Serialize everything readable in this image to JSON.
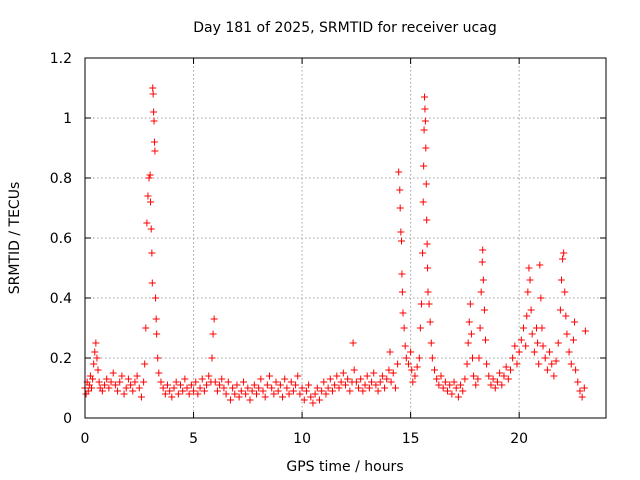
{
  "chart_data": {
    "type": "scatter",
    "title": "Day 181 of 2025, SRMTID for receiver ucag",
    "xlabel": "GPS time / hours",
    "ylabel": "SRMTID / TECUs",
    "xlim": [
      0,
      24
    ],
    "ylim": [
      0,
      1.2
    ],
    "xticks": [
      0,
      5,
      10,
      15,
      20
    ],
    "xtick_labels": [
      "0",
      "5",
      "10",
      "15",
      "20"
    ],
    "yticks": [
      0,
      0.2,
      0.4,
      0.6,
      0.8,
      1.0,
      1.2
    ],
    "ytick_labels": [
      "0",
      "0.2",
      "0.4",
      "0.6",
      "0.8",
      "1",
      "1.2"
    ],
    "grid": true,
    "marker": "+",
    "color": "#ff0000",
    "series": [
      {
        "name": "SRMTID",
        "points": [
          [
            0.0,
            0.1
          ],
          [
            0.05,
            0.08
          ],
          [
            0.1,
            0.12
          ],
          [
            0.15,
            0.09
          ],
          [
            0.2,
            0.11
          ],
          [
            0.25,
            0.14
          ],
          [
            0.3,
            0.1
          ],
          [
            0.35,
            0.13
          ],
          [
            0.4,
            0.18
          ],
          [
            0.45,
            0.22
          ],
          [
            0.5,
            0.25
          ],
          [
            0.55,
            0.2
          ],
          [
            0.6,
            0.16
          ],
          [
            0.65,
            0.12
          ],
          [
            0.7,
            0.1
          ],
          [
            0.8,
            0.09
          ],
          [
            0.9,
            0.11
          ],
          [
            1.0,
            0.13
          ],
          [
            1.1,
            0.1
          ],
          [
            1.2,
            0.12
          ],
          [
            1.3,
            0.15
          ],
          [
            1.4,
            0.11
          ],
          [
            1.5,
            0.09
          ],
          [
            1.6,
            0.12
          ],
          [
            1.7,
            0.14
          ],
          [
            1.8,
            0.08
          ],
          [
            1.9,
            0.1
          ],
          [
            2.0,
            0.13
          ],
          [
            2.1,
            0.11
          ],
          [
            2.2,
            0.09
          ],
          [
            2.3,
            0.12
          ],
          [
            2.4,
            0.14
          ],
          [
            2.5,
            0.1
          ],
          [
            2.6,
            0.07
          ],
          [
            2.7,
            0.12
          ],
          [
            2.75,
            0.18
          ],
          [
            2.8,
            0.3
          ],
          [
            2.85,
            0.65
          ],
          [
            2.9,
            0.74
          ],
          [
            2.95,
            0.8
          ],
          [
            3.0,
            0.81
          ],
          [
            3.02,
            0.72
          ],
          [
            3.05,
            0.63
          ],
          [
            3.08,
            0.55
          ],
          [
            3.1,
            0.45
          ],
          [
            3.12,
            1.1
          ],
          [
            3.14,
            1.08
          ],
          [
            3.16,
            1.02
          ],
          [
            3.18,
            0.99
          ],
          [
            3.2,
            0.92
          ],
          [
            3.22,
            0.89
          ],
          [
            3.25,
            0.4
          ],
          [
            3.28,
            0.33
          ],
          [
            3.3,
            0.28
          ],
          [
            3.35,
            0.2
          ],
          [
            3.4,
            0.15
          ],
          [
            3.5,
            0.12
          ],
          [
            3.6,
            0.1
          ],
          [
            3.7,
            0.08
          ],
          [
            3.8,
            0.11
          ],
          [
            3.9,
            0.09
          ],
          [
            4.0,
            0.07
          ],
          [
            4.1,
            0.1
          ],
          [
            4.2,
            0.12
          ],
          [
            4.3,
            0.08
          ],
          [
            4.4,
            0.11
          ],
          [
            4.5,
            0.09
          ],
          [
            4.6,
            0.13
          ],
          [
            4.7,
            0.1
          ],
          [
            4.8,
            0.08
          ],
          [
            4.9,
            0.11
          ],
          [
            5.0,
            0.09
          ],
          [
            5.1,
            0.12
          ],
          [
            5.2,
            0.08
          ],
          [
            5.3,
            0.1
          ],
          [
            5.4,
            0.13
          ],
          [
            5.5,
            0.09
          ],
          [
            5.6,
            0.11
          ],
          [
            5.7,
            0.14
          ],
          [
            5.8,
            0.12
          ],
          [
            5.85,
            0.2
          ],
          [
            5.9,
            0.28
          ],
          [
            5.95,
            0.33
          ],
          [
            6.0,
            0.12
          ],
          [
            6.1,
            0.09
          ],
          [
            6.2,
            0.11
          ],
          [
            6.3,
            0.13
          ],
          [
            6.4,
            0.1
          ],
          [
            6.5,
            0.08
          ],
          [
            6.6,
            0.12
          ],
          [
            6.7,
            0.06
          ],
          [
            6.8,
            0.1
          ],
          [
            6.9,
            0.08
          ],
          [
            7.0,
            0.11
          ],
          [
            7.1,
            0.07
          ],
          [
            7.2,
            0.09
          ],
          [
            7.3,
            0.12
          ],
          [
            7.4,
            0.08
          ],
          [
            7.5,
            0.1
          ],
          [
            7.6,
            0.06
          ],
          [
            7.7,
            0.09
          ],
          [
            7.8,
            0.11
          ],
          [
            7.9,
            0.08
          ],
          [
            8.0,
            0.1
          ],
          [
            8.1,
            0.13
          ],
          [
            8.2,
            0.09
          ],
          [
            8.3,
            0.07
          ],
          [
            8.4,
            0.11
          ],
          [
            8.5,
            0.14
          ],
          [
            8.6,
            0.1
          ],
          [
            8.7,
            0.08
          ],
          [
            8.8,
            0.12
          ],
          [
            8.9,
            0.09
          ],
          [
            9.0,
            0.11
          ],
          [
            9.1,
            0.07
          ],
          [
            9.2,
            0.13
          ],
          [
            9.3,
            0.1
          ],
          [
            9.4,
            0.08
          ],
          [
            9.5,
            0.12
          ],
          [
            9.6,
            0.09
          ],
          [
            9.7,
            0.11
          ],
          [
            9.8,
            0.14
          ],
          [
            9.9,
            0.08
          ],
          [
            10.0,
            0.1
          ],
          [
            10.1,
            0.06
          ],
          [
            10.2,
            0.09
          ],
          [
            10.3,
            0.11
          ],
          [
            10.4,
            0.07
          ],
          [
            10.5,
            0.05
          ],
          [
            10.6,
            0.08
          ],
          [
            10.7,
            0.1
          ],
          [
            10.8,
            0.06
          ],
          [
            10.9,
            0.09
          ],
          [
            11.0,
            0.12
          ],
          [
            11.1,
            0.08
          ],
          [
            11.2,
            0.1
          ],
          [
            11.3,
            0.13
          ],
          [
            11.4,
            0.09
          ],
          [
            11.5,
            0.11
          ],
          [
            11.6,
            0.14
          ],
          [
            11.7,
            0.1
          ],
          [
            11.8,
            0.12
          ],
          [
            11.9,
            0.15
          ],
          [
            12.0,
            0.11
          ],
          [
            12.1,
            0.13
          ],
          [
            12.2,
            0.09
          ],
          [
            12.3,
            0.12
          ],
          [
            12.35,
            0.25
          ],
          [
            12.4,
            0.16
          ],
          [
            12.5,
            0.12
          ],
          [
            12.6,
            0.1
          ],
          [
            12.7,
            0.13
          ],
          [
            12.8,
            0.09
          ],
          [
            12.9,
            0.11
          ],
          [
            13.0,
            0.14
          ],
          [
            13.1,
            0.1
          ],
          [
            13.2,
            0.12
          ],
          [
            13.3,
            0.15
          ],
          [
            13.4,
            0.11
          ],
          [
            13.5,
            0.09
          ],
          [
            13.6,
            0.12
          ],
          [
            13.7,
            0.14
          ],
          [
            13.8,
            0.1
          ],
          [
            13.9,
            0.13
          ],
          [
            14.0,
            0.16
          ],
          [
            14.05,
            0.22
          ],
          [
            14.1,
            0.12
          ],
          [
            14.2,
            0.15
          ],
          [
            14.3,
            0.1
          ],
          [
            14.4,
            0.18
          ],
          [
            14.45,
            0.82
          ],
          [
            14.5,
            0.76
          ],
          [
            14.52,
            0.7
          ],
          [
            14.55,
            0.62
          ],
          [
            14.58,
            0.59
          ],
          [
            14.6,
            0.48
          ],
          [
            14.62,
            0.42
          ],
          [
            14.65,
            0.35
          ],
          [
            14.7,
            0.3
          ],
          [
            14.75,
            0.24
          ],
          [
            14.8,
            0.2
          ],
          [
            14.9,
            0.18
          ],
          [
            15.0,
            0.22
          ],
          [
            15.05,
            0.16
          ],
          [
            15.1,
            0.12
          ],
          [
            15.2,
            0.14
          ],
          [
            15.3,
            0.17
          ],
          [
            15.4,
            0.2
          ],
          [
            15.45,
            0.3
          ],
          [
            15.5,
            0.38
          ],
          [
            15.55,
            0.55
          ],
          [
            15.58,
            0.72
          ],
          [
            15.6,
            0.84
          ],
          [
            15.62,
            0.96
          ],
          [
            15.64,
            1.07
          ],
          [
            15.66,
            1.03
          ],
          [
            15.68,
            0.99
          ],
          [
            15.7,
            0.9
          ],
          [
            15.72,
            0.78
          ],
          [
            15.74,
            0.66
          ],
          [
            15.76,
            0.58
          ],
          [
            15.78,
            0.5
          ],
          [
            15.8,
            0.42
          ],
          [
            15.85,
            0.38
          ],
          [
            15.9,
            0.32
          ],
          [
            15.95,
            0.25
          ],
          [
            16.0,
            0.2
          ],
          [
            16.1,
            0.16
          ],
          [
            16.2,
            0.13
          ],
          [
            16.3,
            0.11
          ],
          [
            16.4,
            0.14
          ],
          [
            16.5,
            0.1
          ],
          [
            16.6,
            0.12
          ],
          [
            16.7,
            0.09
          ],
          [
            16.8,
            0.11
          ],
          [
            16.9,
            0.08
          ],
          [
            17.0,
            0.12
          ],
          [
            17.1,
            0.1
          ],
          [
            17.2,
            0.07
          ],
          [
            17.3,
            0.11
          ],
          [
            17.4,
            0.09
          ],
          [
            17.5,
            0.13
          ],
          [
            17.6,
            0.18
          ],
          [
            17.65,
            0.25
          ],
          [
            17.7,
            0.32
          ],
          [
            17.75,
            0.38
          ],
          [
            17.8,
            0.28
          ],
          [
            17.85,
            0.2
          ],
          [
            17.9,
            0.14
          ],
          [
            18.0,
            0.11
          ],
          [
            18.1,
            0.13
          ],
          [
            18.15,
            0.2
          ],
          [
            18.2,
            0.3
          ],
          [
            18.25,
            0.42
          ],
          [
            18.3,
            0.52
          ],
          [
            18.32,
            0.56
          ],
          [
            18.35,
            0.46
          ],
          [
            18.4,
            0.36
          ],
          [
            18.45,
            0.26
          ],
          [
            18.5,
            0.18
          ],
          [
            18.6,
            0.14
          ],
          [
            18.7,
            0.11
          ],
          [
            18.8,
            0.13
          ],
          [
            18.9,
            0.1
          ],
          [
            19.0,
            0.12
          ],
          [
            19.1,
            0.15
          ],
          [
            19.2,
            0.11
          ],
          [
            19.3,
            0.14
          ],
          [
            19.4,
            0.17
          ],
          [
            19.5,
            0.13
          ],
          [
            19.6,
            0.16
          ],
          [
            19.7,
            0.2
          ],
          [
            19.8,
            0.24
          ],
          [
            19.9,
            0.18
          ],
          [
            20.0,
            0.22
          ],
          [
            20.1,
            0.26
          ],
          [
            20.2,
            0.3
          ],
          [
            20.3,
            0.24
          ],
          [
            20.35,
            0.34
          ],
          [
            20.4,
            0.42
          ],
          [
            20.45,
            0.5
          ],
          [
            20.5,
            0.46
          ],
          [
            20.55,
            0.36
          ],
          [
            20.6,
            0.28
          ],
          [
            20.7,
            0.22
          ],
          [
            20.8,
            0.3
          ],
          [
            20.85,
            0.25
          ],
          [
            20.9,
            0.18
          ],
          [
            20.95,
            0.51
          ],
          [
            21.0,
            0.4
          ],
          [
            21.05,
            0.3
          ],
          [
            21.1,
            0.24
          ],
          [
            21.2,
            0.2
          ],
          [
            21.3,
            0.16
          ],
          [
            21.4,
            0.22
          ],
          [
            21.5,
            0.18
          ],
          [
            21.6,
            0.14
          ],
          [
            21.7,
            0.19
          ],
          [
            21.8,
            0.25
          ],
          [
            21.9,
            0.36
          ],
          [
            21.95,
            0.46
          ],
          [
            22.0,
            0.53
          ],
          [
            22.05,
            0.55
          ],
          [
            22.1,
            0.42
          ],
          [
            22.15,
            0.34
          ],
          [
            22.2,
            0.28
          ],
          [
            22.3,
            0.22
          ],
          [
            22.4,
            0.18
          ],
          [
            22.5,
            0.26
          ],
          [
            22.55,
            0.32
          ],
          [
            22.6,
            0.16
          ],
          [
            22.7,
            0.12
          ],
          [
            22.8,
            0.09
          ],
          [
            22.9,
            0.07
          ],
          [
            23.0,
            0.1
          ],
          [
            23.05,
            0.29
          ]
        ]
      }
    ]
  }
}
